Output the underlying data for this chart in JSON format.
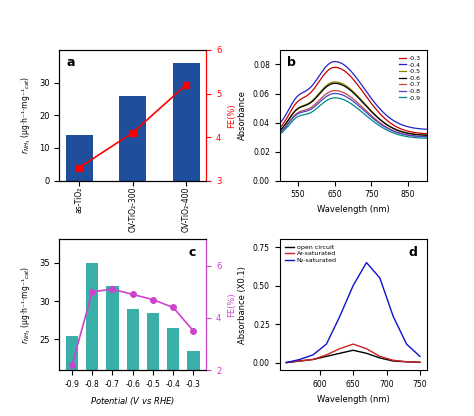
{
  "panel_a": {
    "categories": [
      "as-TiO₂",
      "OV-TiO₂-300",
      "OV-TiO₂-400"
    ],
    "bar_values": [
      14,
      26,
      36
    ],
    "fe_values": [
      3.3,
      4.1,
      5.2
    ],
    "bar_color": "#1f4e9c",
    "fe_color": "red",
    "ylabel_left": "rₙₕ₃ (μg·h⁻¹·mg⁻¹ₙₐₜ)",
    "ylabel_right": "FE(%)",
    "ylim_left": [
      0,
      40
    ],
    "ylim_right": [
      3,
      6
    ],
    "label": "a"
  },
  "panel_b": {
    "wavelengths": [
      500,
      520,
      540,
      560,
      580,
      600,
      620,
      640,
      660,
      680,
      700,
      720,
      740,
      760,
      780,
      800,
      820,
      840,
      860,
      880,
      900
    ],
    "potentials": [
      "-0.3",
      "-0.4",
      "-0.5",
      "-0.6",
      "-0.7",
      "-0.8",
      "-0.9"
    ],
    "colors": [
      "#cc0000",
      "#2222cc",
      "#888800",
      "#000000",
      "#cc4444",
      "#4444cc",
      "#008888"
    ],
    "peak_absorbances": [
      0.078,
      0.082,
      0.068,
      0.067,
      0.062,
      0.06,
      0.057
    ],
    "baseline_absorbances": [
      0.032,
      0.035,
      0.031,
      0.031,
      0.03,
      0.03,
      0.029
    ],
    "xlabel": "Wavelength (nm)",
    "ylabel": "Absorbance",
    "xlim": [
      500,
      900
    ],
    "ylim": [
      0.0,
      0.09
    ],
    "label": "b"
  },
  "panel_c": {
    "potentials": [
      -0.9,
      -0.8,
      -0.7,
      -0.6,
      -0.5,
      -0.4,
      -0.3
    ],
    "bar_values": [
      25.5,
      35,
      32,
      29,
      28.5,
      26.5,
      23.5
    ],
    "fe_values": [
      2.2,
      5.0,
      5.1,
      4.9,
      4.7,
      4.4,
      3.5
    ],
    "bar_color": "#3aafa9",
    "fe_color": "#cc44cc",
    "ylabel_left": "rₙₕ₃ (μg·h⁻¹·mg⁻¹ₙₐₜ)",
    "ylabel_right": "FE(%)",
    "xlabel": "Potential (V vs RHE)",
    "ylim_left": [
      21,
      38
    ],
    "ylim_right": [
      2,
      7
    ],
    "label": "c"
  },
  "panel_d": {
    "wavelengths": [
      550,
      570,
      590,
      610,
      630,
      650,
      670,
      690,
      710,
      730,
      750
    ],
    "open_circuit": [
      0.0,
      0.01,
      0.02,
      0.04,
      0.06,
      0.08,
      0.06,
      0.03,
      0.01,
      0.005,
      0.002
    ],
    "ar_saturated": [
      0.0,
      0.01,
      0.02,
      0.05,
      0.09,
      0.12,
      0.09,
      0.04,
      0.015,
      0.005,
      0.002
    ],
    "n2_saturated": [
      0.0,
      0.02,
      0.05,
      0.12,
      0.3,
      0.5,
      0.65,
      0.55,
      0.3,
      0.12,
      0.04
    ],
    "colors": [
      "#000000",
      "#cc2222",
      "#1111cc"
    ],
    "labels": [
      "open circuit",
      "Ar-saturated",
      "N₂-saturated"
    ],
    "xlabel": "Wavelength (nm)",
    "ylabel": "Absorbance (X0.1)",
    "xlim": [
      540,
      760
    ],
    "ylim": [
      -0.05,
      0.8
    ],
    "label": "d"
  }
}
